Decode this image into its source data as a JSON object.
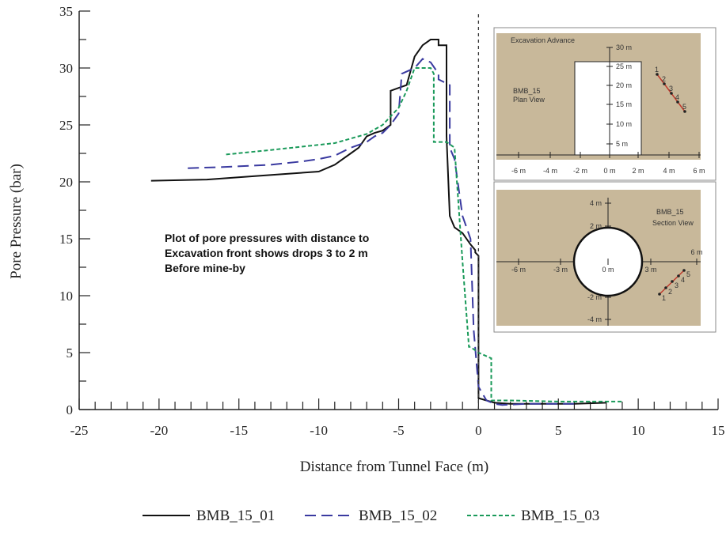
{
  "chart_data": {
    "type": "line",
    "xlabel": "Distance from Tunnel Face (m)",
    "ylabel": "Pore Pressure (bar)",
    "xlim": [
      -25,
      15
    ],
    "ylim": [
      0,
      35
    ],
    "x_ticks": [
      -25,
      -20,
      -15,
      -10,
      -5,
      0,
      5,
      10,
      15
    ],
    "y_ticks": [
      0,
      5,
      10,
      15,
      20,
      25,
      30,
      35
    ],
    "grid": false,
    "legend_position": "bottom",
    "vertical_reference_line": {
      "x": 0,
      "style": "dashed"
    },
    "annotation": [
      "Plot of pore pressures with distance to",
      "Excavation front shows drops 3 to 2 m",
      "Before mine-by"
    ],
    "series": [
      {
        "name": "BMB_15_01",
        "color": "#111111",
        "dash": "solid",
        "x": [
          -20.5,
          -17,
          -14,
          -12,
          -10,
          -9,
          -8,
          -7.5,
          -7,
          -6.5,
          -6,
          -5.5,
          -5.5,
          -4.5,
          -4,
          -3.5,
          -3,
          -2.5,
          -2.5,
          -2,
          -2,
          -1.8,
          -1.5,
          -1,
          -0.5,
          -0.2,
          -0.2,
          0,
          0,
          0.5,
          1,
          2,
          4,
          6,
          8
        ],
        "y": [
          20.1,
          20.2,
          20.5,
          20.7,
          20.9,
          21.5,
          22.5,
          23,
          24,
          24.3,
          24.5,
          25,
          28,
          28.5,
          31,
          32,
          32.5,
          32.5,
          32,
          32,
          24,
          17,
          16,
          15.5,
          14.5,
          14,
          13.8,
          13.5,
          1,
          0.8,
          0.6,
          0.5,
          0.5,
          0.5,
          0.6
        ]
      },
      {
        "name": "BMB_15_02",
        "color": "#3a3aa0",
        "dash": "long",
        "x": [
          -18.2,
          -16,
          -13,
          -11,
          -10,
          -9,
          -8,
          -7,
          -6.5,
          -6,
          -5.5,
          -5,
          -4.8,
          -4,
          -3.5,
          -3,
          -2.5,
          -2.5,
          -1.8,
          -1.8,
          -1.5,
          -1,
          -0.5,
          -0.3,
          0,
          0.5,
          1,
          1.5,
          3,
          6
        ],
        "y": [
          21.2,
          21.3,
          21.5,
          21.8,
          22,
          22.3,
          23,
          23.5,
          24,
          24.3,
          25,
          26,
          29.5,
          30,
          30.8,
          30.5,
          29.5,
          29,
          28.5,
          23,
          22,
          17,
          15,
          7,
          2,
          0.8,
          0.5,
          0.4,
          0.5,
          0.5
        ]
      },
      {
        "name": "BMB_15_03",
        "color": "#1a9a5a",
        "dash": "short",
        "x": [
          -15.8,
          -13,
          -11,
          -9,
          -7,
          -6,
          -5,
          -4.5,
          -4,
          -3,
          -2.8,
          -2.8,
          -2,
          -1.5,
          -1,
          -0.6,
          -0.5,
          0,
          0.8,
          0.8,
          2,
          5,
          9
        ],
        "y": [
          22.4,
          22.8,
          23.1,
          23.4,
          24.2,
          25,
          26.5,
          28,
          30,
          30,
          29.5,
          23.5,
          23.5,
          23,
          13,
          5.5,
          5.5,
          5,
          4.5,
          0.8,
          0.8,
          0.7,
          0.7
        ]
      }
    ]
  },
  "insets": {
    "plan": {
      "title": "Excavation Advance",
      "label_line1": "BMB_15",
      "label_line2": "Plan View",
      "x_ticks": [
        "-6 m",
        "-4 m",
        "-2 m",
        "0 m",
        "2 m",
        "4 m",
        "6 m"
      ],
      "y_ticks": [
        "30 m",
        "25 m",
        "20 m",
        "15 m",
        "10 m",
        "5 m"
      ],
      "points": [
        "1",
        "2",
        "3",
        "4",
        "5"
      ]
    },
    "section": {
      "label_line1": "BMB_15",
      "label_line2": "Section View",
      "x_labels": [
        "-6 m",
        "-3 m",
        "0 m",
        "3 m",
        "6 m"
      ],
      "y_labels": [
        "4 m",
        "2 m",
        "-2 m",
        "-4 m"
      ],
      "points": [
        "1",
        "2",
        "3",
        "4",
        "5"
      ]
    }
  }
}
